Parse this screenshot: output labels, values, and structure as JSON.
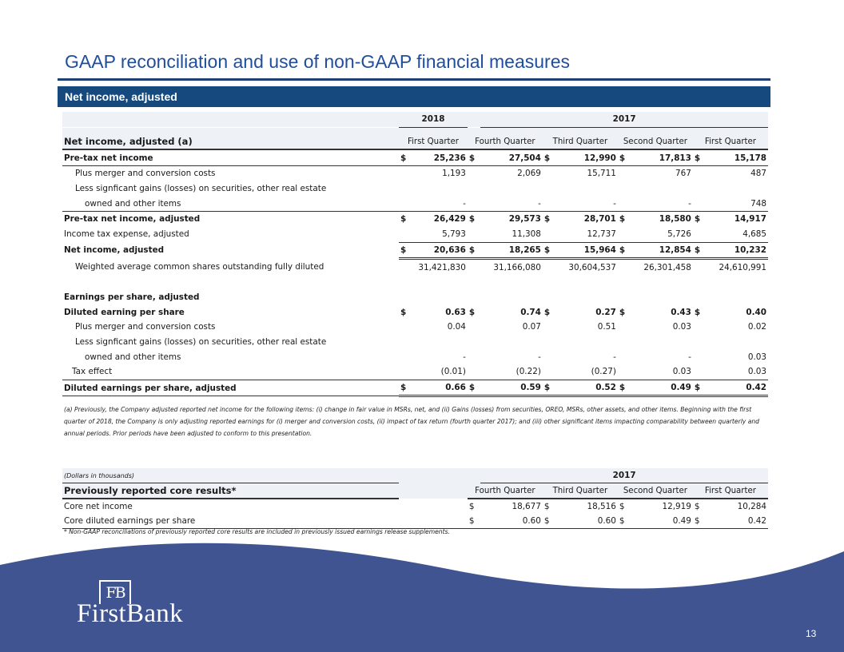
{
  "title": "GAAP reconciliation and use of non-GAAP financial measures",
  "section_title": "Net income, adjusted",
  "table": {
    "year_2018": "2018",
    "year_2017": "2017",
    "header_label": "Net income, adjusted (a)",
    "columns": [
      "First Quarter",
      "Fourth Quarter",
      "Third Quarter",
      "Second Quarter",
      "First Quarter"
    ],
    "rows": [
      {
        "label": "Pre-tax net income",
        "d": [
          "$",
          "$",
          "$",
          "$",
          "$"
        ],
        "v": [
          "25,236",
          "27,504",
          "12,990",
          "17,813",
          "15,178"
        ]
      },
      {
        "label": "Plus merger and conversion costs",
        "d": [
          "",
          "",
          "",
          "",
          ""
        ],
        "v": [
          "1,193",
          "2,069",
          "15,711",
          "767",
          "487"
        ]
      },
      {
        "label": "Less signficant gains (losses) on securities, other real estate",
        "d": [
          "",
          "",
          "",
          "",
          ""
        ],
        "v": [
          "",
          "",
          "",
          "",
          ""
        ]
      },
      {
        "label": "owned and other items",
        "d": [
          "",
          "",
          "",
          "",
          ""
        ],
        "v": [
          "-",
          "-",
          "-",
          "-",
          "748"
        ]
      },
      {
        "label": "Pre-tax net income, adjusted",
        "d": [
          "$",
          "$",
          "$",
          "$",
          "$"
        ],
        "v": [
          "26,429",
          "29,573",
          "28,701",
          "18,580",
          "14,917"
        ]
      },
      {
        "label": "Income tax expense, adjusted",
        "d": [
          "",
          "",
          "",
          "",
          ""
        ],
        "v": [
          "5,793",
          "11,308",
          "12,737",
          "5,726",
          "4,685"
        ]
      },
      {
        "label": "Net income, adjusted",
        "d": [
          "$",
          "$",
          "$",
          "$",
          "$"
        ],
        "v": [
          "20,636",
          "18,265",
          "15,964",
          "12,854",
          "10,232"
        ]
      },
      {
        "label": "Weighted average common shares outstanding fully diluted",
        "d": [
          "",
          "",
          "",
          "",
          ""
        ],
        "v": [
          "31,421,830",
          "31,166,080",
          "30,604,537",
          "26,301,458",
          "24,610,991"
        ]
      },
      {
        "label": "",
        "d": [
          "",
          "",
          "",
          "",
          ""
        ],
        "v": [
          "",
          "",
          "",
          "",
          ""
        ]
      },
      {
        "label": "Earnings per share, adjusted",
        "d": [
          "",
          "",
          "",
          "",
          ""
        ],
        "v": [
          "",
          "",
          "",
          "",
          ""
        ]
      },
      {
        "label": "Diluted earning per share",
        "d": [
          "$",
          "$",
          "$",
          "$",
          "$"
        ],
        "v": [
          "0.63",
          "0.74",
          "0.27",
          "0.43",
          "0.40"
        ]
      },
      {
        "label": "Plus merger and conversion costs",
        "d": [
          "",
          "",
          "",
          "",
          ""
        ],
        "v": [
          "0.04",
          "0.07",
          "0.51",
          "0.03",
          "0.02"
        ]
      },
      {
        "label": "Less signficant gains (losses) on securities, other real estate",
        "d": [
          "",
          "",
          "",
          "",
          ""
        ],
        "v": [
          "",
          "",
          "",
          "",
          ""
        ]
      },
      {
        "label": "owned and other items",
        "d": [
          "",
          "",
          "",
          "",
          ""
        ],
        "v": [
          "-",
          "-",
          "-",
          "-",
          "0.03"
        ]
      },
      {
        "label": "Tax effect",
        "d": [
          "",
          "",
          "",
          "",
          ""
        ],
        "v": [
          "(0.01)",
          "(0.22)",
          "(0.27)",
          "0.03",
          "0.03"
        ]
      },
      {
        "label": "Diluted earnings per share, adjusted",
        "d": [
          "$",
          "$",
          "$",
          "$",
          "$"
        ],
        "v": [
          "0.66",
          "0.59",
          "0.52",
          "0.49",
          "0.42"
        ]
      }
    ]
  },
  "footnote_a": "(a) Previously, the Company adjusted reported net income for the following items: (i) change in fair value in MSRs, net, and (ii) Gains (losses) from securities, OREO, MSRs, other assets, and other items. Beginning with the first quarter of 2018, the Company is only adjusting reported earnings for (i) merger and conversion costs, (ii) impact of tax return (fourth quarter 2017); and (iii) other significant items impacting comparability between quarterly and annual periods. Prior periods have been adjusted to conform to this presentation.",
  "core": {
    "units": "(Dollars in thousands)",
    "year": "2017",
    "title": "Previously reported core results*",
    "columns": [
      "Fourth Quarter",
      "Third Quarter",
      "Second Quarter",
      "First Quarter"
    ],
    "rows": [
      {
        "label": "Core net income",
        "v": [
          "18,677",
          "18,516",
          "12,919",
          "10,284"
        ]
      },
      {
        "label": "Core diluted earnings per share",
        "v": [
          "0.60",
          "0.60",
          "0.49",
          "0.42"
        ]
      }
    ],
    "dollar": "$",
    "note": "* Non-GAAP reconciliations of previously reported core results are included in previously issued earnings release supplements."
  },
  "logo": {
    "mark": "FB",
    "word": "FirstBank"
  },
  "page_number": "13",
  "colors": {
    "title": "#1f4e9c",
    "section_bar": "#164a7e",
    "wave": "#3f5491"
  }
}
